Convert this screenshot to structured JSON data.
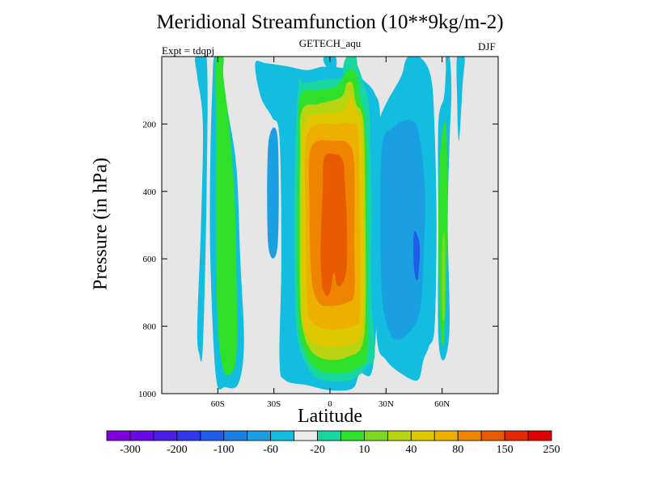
{
  "chart_data": {
    "type": "heatmap",
    "title": "Meridional Streamfunction (10**9kg/m-2)",
    "subtitle": "GETECH_aqu",
    "left_label": "Expt = tdqpj",
    "right_label": "DJF",
    "xlabel": "Latitude",
    "ylabel": "Pressure (in hPa)",
    "xlim": [
      -90,
      90
    ],
    "ylim": [
      1000,
      0
    ],
    "x_ticks": [
      {
        "value": -60,
        "label": "60S"
      },
      {
        "value": -30,
        "label": "30S"
      },
      {
        "value": 0,
        "label": "0"
      },
      {
        "value": 30,
        "label": "30N"
      },
      {
        "value": 60,
        "label": "60N"
      }
    ],
    "y_ticks": [
      {
        "value": 200,
        "label": "200"
      },
      {
        "value": 400,
        "label": "400"
      },
      {
        "value": 600,
        "label": "600"
      },
      {
        "value": 800,
        "label": "800"
      },
      {
        "value": 1000,
        "label": "1000"
      }
    ],
    "background_color": "#e6e6e6",
    "colorbar": {
      "colors": [
        "#8000e0",
        "#6a0ae6",
        "#4b1ee8",
        "#2e38ea",
        "#1f5ce8",
        "#1b80e6",
        "#1aa0e2",
        "#12bde0",
        "#eaeaea",
        "#18d6a0",
        "#2ee02a",
        "#7ed820",
        "#b8d410",
        "#e0c800",
        "#eeb000",
        "#ee8400",
        "#e85a00",
        "#e22a00",
        "#e00000"
      ],
      "labels": [
        {
          "after_box": 1,
          "text": "-300"
        },
        {
          "after_box": 3,
          "text": "-200"
        },
        {
          "after_box": 5,
          "text": "-100"
        },
        {
          "after_box": 7,
          "text": "-60"
        },
        {
          "after_box": 9,
          "text": "-20"
        },
        {
          "after_box": 11,
          "text": "10"
        },
        {
          "after_box": 13,
          "text": "40"
        },
        {
          "after_box": 15,
          "text": "80"
        },
        {
          "after_box": 17,
          "text": "150"
        },
        {
          "after_box": 19,
          "text": "250"
        }
      ]
    },
    "contours": [
      {
        "name": "sh-outer-cell",
        "color": "#12bde0",
        "points": [
          [
            -72,
            1
          ],
          [
            -71,
            60
          ],
          [
            -68,
            200
          ],
          [
            -69,
            500
          ],
          [
            -71,
            800
          ],
          [
            -70,
            880
          ],
          [
            -68,
            860
          ],
          [
            -66,
            400
          ],
          [
            -66,
            1
          ]
        ]
      },
      {
        "name": "sh-ferrel-cell",
        "color": "#12bde0",
        "points": [
          [
            -62,
            1
          ],
          [
            -59,
            1
          ],
          [
            -55,
            150
          ],
          [
            -50,
            330
          ],
          [
            -48,
            600
          ],
          [
            -46,
            850
          ],
          [
            -49,
            970
          ],
          [
            -56,
            980
          ],
          [
            -61,
            950
          ],
          [
            -64,
            600
          ],
          [
            -64,
            300
          ],
          [
            -63,
            100
          ]
        ]
      },
      {
        "name": "sh-ferrel-core",
        "color": "#2ee02a",
        "points": [
          [
            -61,
            1
          ],
          [
            -57,
            1
          ],
          [
            -57,
            60
          ],
          [
            -54,
            200
          ],
          [
            -51,
            420
          ],
          [
            -50,
            650
          ],
          [
            -50,
            880
          ],
          [
            -53,
            940
          ],
          [
            -57,
            930
          ],
          [
            -60,
            800
          ],
          [
            -61,
            500
          ],
          [
            -61,
            200
          ]
        ]
      },
      {
        "name": "sh-hadley-outer",
        "color": "#12bde0",
        "points": [
          [
            -40,
            20
          ],
          [
            -37,
            120
          ],
          [
            -31,
            180
          ],
          [
            -27,
            240
          ],
          [
            -26,
            600
          ],
          [
            -27,
            900
          ],
          [
            -24,
            960
          ],
          [
            -12,
            975
          ],
          [
            0,
            990
          ],
          [
            12,
            985
          ],
          [
            16,
            940
          ],
          [
            23,
            920
          ],
          [
            26,
            600
          ],
          [
            27,
            200
          ],
          [
            24,
            110
          ],
          [
            18,
            70
          ],
          [
            12,
            40
          ],
          [
            -3,
            30
          ],
          [
            -12,
            40
          ],
          [
            -22,
            30
          ],
          [
            -34,
            20
          ]
        ]
      },
      {
        "name": "sh-hadley-shade",
        "color": "#1aa0e2",
        "points": [
          [
            -33,
            260
          ],
          [
            -28,
            240
          ],
          [
            -28,
            560
          ],
          [
            -33,
            560
          ]
        ]
      },
      {
        "name": "nh-upper-cell",
        "color": "#12bde0",
        "points": [
          [
            -3,
            1
          ],
          [
            3,
            1
          ],
          [
            3,
            40
          ],
          [
            0,
            40
          ],
          [
            -3,
            20
          ]
        ]
      },
      {
        "name": "nh-upper-jet",
        "color": "#18d6a0",
        "points": [
          [
            9,
            1
          ],
          [
            14,
            1
          ],
          [
            14,
            50
          ],
          [
            10,
            60
          ],
          [
            7,
            40
          ]
        ]
      },
      {
        "name": "nh-ferrel-outer",
        "color": "#12bde0",
        "points": [
          [
            26,
            200
          ],
          [
            30,
            140
          ],
          [
            38,
            60
          ],
          [
            40,
            20
          ],
          [
            42,
            1
          ],
          [
            48,
            1
          ],
          [
            54,
            60
          ],
          [
            56,
            220
          ],
          [
            57,
            500
          ],
          [
            56,
            800
          ],
          [
            53,
            860
          ],
          [
            50,
            900
          ],
          [
            47,
            960
          ],
          [
            38,
            940
          ],
          [
            30,
            900
          ],
          [
            25,
            830
          ],
          [
            24,
            500
          ],
          [
            25,
            300
          ]
        ]
      },
      {
        "name": "nh-ferrel-inner",
        "color": "#1aa0e2",
        "points": [
          [
            28,
            260
          ],
          [
            34,
            210
          ],
          [
            40,
            190
          ],
          [
            46,
            200
          ],
          [
            49,
            280
          ],
          [
            51,
            420
          ],
          [
            50,
            600
          ],
          [
            48,
            760
          ],
          [
            42,
            820
          ],
          [
            36,
            840
          ],
          [
            32,
            820
          ],
          [
            28,
            720
          ],
          [
            27,
            500
          ]
        ]
      },
      {
        "name": "nh-ferrel-core",
        "color": "#1f5ce8",
        "points": [
          [
            45,
            520
          ],
          [
            48,
            560
          ],
          [
            47,
            660
          ],
          [
            45,
            630
          ]
        ]
      },
      {
        "name": "nh-polar-cell",
        "color": "#12bde0",
        "points": [
          [
            58,
            200
          ],
          [
            61,
            120
          ],
          [
            62,
            40
          ],
          [
            62,
            1
          ],
          [
            64,
            1
          ],
          [
            65,
            100
          ],
          [
            64,
            250
          ],
          [
            63,
            500
          ],
          [
            64,
            800
          ],
          [
            61,
            900
          ],
          [
            58,
            830
          ],
          [
            58,
            500
          ]
        ]
      },
      {
        "name": "nh-polar-core",
        "color": "#2ee02a",
        "points": [
          [
            59,
            280
          ],
          [
            62,
            200
          ],
          [
            63,
            450
          ],
          [
            62,
            700
          ],
          [
            61,
            850
          ],
          [
            59,
            800
          ],
          [
            58,
            500
          ]
        ]
      },
      {
        "name": "nh-polar-inner",
        "color": "#7ed820",
        "points": [
          [
            60,
            560
          ],
          [
            61.5,
            540
          ],
          [
            61.5,
            760
          ],
          [
            60,
            760
          ]
        ]
      },
      {
        "name": "nh-top-cell",
        "color": "#12bde0",
        "points": [
          [
            68,
            1
          ],
          [
            72,
            1
          ],
          [
            71,
            80
          ],
          [
            69,
            250
          ],
          [
            68,
            120
          ]
        ]
      },
      {
        "name": "hadley-10",
        "color": "#18d6a0",
        "points": [
          [
            -17,
            90
          ],
          [
            -14,
            80
          ],
          [
            -5,
            70
          ],
          [
            7,
            60
          ],
          [
            10,
            20
          ],
          [
            14,
            20
          ],
          [
            18,
            80
          ],
          [
            21,
            160
          ],
          [
            22,
            400
          ],
          [
            22,
            700
          ],
          [
            24,
            880
          ],
          [
            20,
            920
          ],
          [
            11,
            960
          ],
          [
            -4,
            960
          ],
          [
            -12,
            920
          ],
          [
            -18,
            800
          ],
          [
            -19,
            400
          ]
        ]
      },
      {
        "name": "hadley-40",
        "color": "#2ee02a",
        "points": [
          [
            -16,
            120
          ],
          [
            -7,
            100
          ],
          [
            3,
            90
          ],
          [
            7,
            60
          ],
          [
            10,
            40
          ],
          [
            14,
            50
          ],
          [
            16,
            120
          ],
          [
            19,
            200
          ],
          [
            20,
            500
          ],
          [
            20,
            720
          ],
          [
            20,
            880
          ],
          [
            16,
            920
          ],
          [
            6,
            940
          ],
          [
            -6,
            930
          ],
          [
            -13,
            880
          ],
          [
            -17,
            760
          ],
          [
            -17,
            300
          ]
        ]
      },
      {
        "name": "hadley-80",
        "color": "#b8d410",
        "points": [
          [
            -15,
            160
          ],
          [
            -6,
            140
          ],
          [
            6,
            120
          ],
          [
            9,
            80
          ],
          [
            12,
            80
          ],
          [
            14,
            140
          ],
          [
            18,
            200
          ],
          [
            19,
            500
          ],
          [
            19,
            760
          ],
          [
            17,
            860
          ],
          [
            10,
            890
          ],
          [
            0,
            900
          ],
          [
            -9,
            880
          ],
          [
            -14,
            820
          ],
          [
            -16,
            700
          ],
          [
            -16,
            300
          ]
        ]
      },
      {
        "name": "hadley-100",
        "color": "#e0c800",
        "points": [
          [
            -14,
            200
          ],
          [
            -4,
            170
          ],
          [
            7,
            160
          ],
          [
            11,
            120
          ],
          [
            14,
            160
          ],
          [
            17,
            220
          ],
          [
            18,
            500
          ],
          [
            18,
            760
          ],
          [
            15,
            840
          ],
          [
            6,
            860
          ],
          [
            -4,
            860
          ],
          [
            -12,
            830
          ],
          [
            -15,
            740
          ],
          [
            -15,
            400
          ]
        ]
      },
      {
        "name": "hadley-150",
        "color": "#eeb000",
        "points": [
          [
            -12,
            230
          ],
          [
            4,
            200
          ],
          [
            11,
            200
          ],
          [
            15,
            230
          ],
          [
            16,
            500
          ],
          [
            16,
            760
          ],
          [
            12,
            800
          ],
          [
            -1,
            810
          ],
          [
            -9,
            790
          ],
          [
            -12,
            740
          ],
          [
            -13,
            500
          ]
        ]
      },
      {
        "name": "hadley-200",
        "color": "#ee8400",
        "points": [
          [
            -10,
            270
          ],
          [
            3,
            250
          ],
          [
            10,
            260
          ],
          [
            13,
            320
          ],
          [
            13,
            550
          ],
          [
            13,
            700
          ],
          [
            9,
            730
          ],
          [
            -2,
            740
          ],
          [
            -7,
            720
          ],
          [
            -10,
            650
          ],
          [
            -11,
            450
          ]
        ]
      },
      {
        "name": "hadley-250",
        "color": "#e85a00",
        "points": [
          [
            -3,
            300
          ],
          [
            3,
            290
          ],
          [
            7,
            310
          ],
          [
            8,
            380
          ],
          [
            9,
            480
          ],
          [
            9,
            620
          ],
          [
            7,
            670
          ],
          [
            4,
            680
          ],
          [
            2,
            640
          ],
          [
            0,
            700
          ],
          [
            -3,
            700
          ],
          [
            -5,
            600
          ],
          [
            -4,
            400
          ]
        ]
      },
      {
        "name": "hadley-250-lobe",
        "color": "#e85a00",
        "points": [
          [
            -4,
            640
          ],
          [
            -1,
            640
          ],
          [
            -1,
            690
          ],
          [
            -4,
            690
          ]
        ]
      }
    ]
  }
}
